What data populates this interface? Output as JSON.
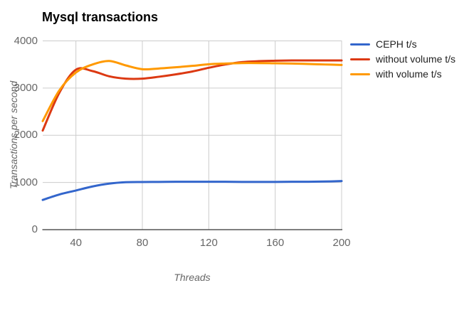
{
  "chart_data": {
    "type": "line",
    "title": "Mysql transactions",
    "xlabel": "Threads",
    "ylabel": "Transactions per second",
    "x": [
      20,
      30,
      40,
      50,
      60,
      70,
      80,
      90,
      100,
      110,
      120,
      130,
      140,
      150,
      160,
      170,
      180,
      190,
      200
    ],
    "series": [
      {
        "name": "CEPH t/s",
        "color": "#3366CC",
        "values": [
          630,
          745,
          830,
          915,
          975,
          1005,
          1010,
          1012,
          1015,
          1015,
          1015,
          1015,
          1012,
          1012,
          1012,
          1015,
          1015,
          1020,
          1030
        ]
      },
      {
        "name": "without volume t/s",
        "color": "#DC3912",
        "values": [
          2100,
          2900,
          3390,
          3360,
          3250,
          3200,
          3200,
          3240,
          3290,
          3350,
          3430,
          3500,
          3550,
          3570,
          3580,
          3585,
          3585,
          3585,
          3585
        ]
      },
      {
        "name": "with volume t/s",
        "color": "#FF9900",
        "values": [
          2300,
          2950,
          3330,
          3500,
          3575,
          3480,
          3400,
          3415,
          3440,
          3470,
          3505,
          3520,
          3530,
          3530,
          3525,
          3520,
          3510,
          3500,
          3490
        ]
      }
    ],
    "xticks": [
      40,
      80,
      120,
      160,
      200
    ],
    "yticks": [
      0,
      1000,
      2000,
      3000,
      4000
    ],
    "xlim": [
      20,
      200
    ],
    "ylim": [
      0,
      4000
    ],
    "grid": true,
    "legend_position": "right"
  },
  "colors": {
    "gridline": "#CCCCCC",
    "axis_line": "#333333",
    "tick_text": "#666666",
    "axis_title_text": "#666666",
    "title_text": "#000000",
    "legend_text": "#222222",
    "background": "#FFFFFF"
  }
}
